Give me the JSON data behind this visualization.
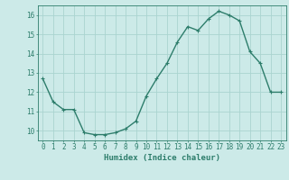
{
  "x": [
    0,
    1,
    2,
    3,
    4,
    5,
    6,
    7,
    8,
    9,
    10,
    11,
    12,
    13,
    14,
    15,
    16,
    17,
    18,
    19,
    20,
    21,
    22,
    23
  ],
  "y": [
    12.7,
    11.5,
    11.1,
    11.1,
    9.9,
    9.8,
    9.8,
    9.9,
    10.1,
    10.5,
    11.8,
    12.7,
    13.5,
    14.6,
    15.4,
    15.2,
    15.8,
    16.2,
    16.0,
    15.7,
    14.1,
    13.5,
    12.0,
    12.0
  ],
  "line_color": "#2d7d6b",
  "marker": "+",
  "marker_size": 3,
  "linewidth": 1.0,
  "xlabel": "Humidex (Indice chaleur)",
  "bg_color": "#cceae8",
  "grid_color": "#aad4d0",
  "xlim": [
    -0.5,
    23.5
  ],
  "ylim": [
    9.5,
    16.5
  ],
  "yticks": [
    10,
    11,
    12,
    13,
    14,
    15,
    16
  ],
  "xticks": [
    0,
    1,
    2,
    3,
    4,
    5,
    6,
    7,
    8,
    9,
    10,
    11,
    12,
    13,
    14,
    15,
    16,
    17,
    18,
    19,
    20,
    21,
    22,
    23
  ],
  "tick_color": "#2d7d6b",
  "label_fontsize": 6.5,
  "tick_fontsize": 5.5,
  "figsize": [
    3.2,
    2.0
  ],
  "dpi": 100
}
